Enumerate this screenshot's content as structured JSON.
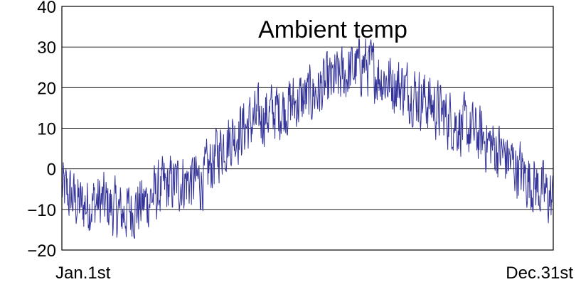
{
  "chart_data": {
    "type": "line",
    "title": "Ambient temp",
    "xlabel": "",
    "ylabel": "",
    "x_tick_labels": [
      "Jan.1st",
      "Dec.31st"
    ],
    "ylim": [
      -20,
      40
    ],
    "y_ticks": [
      -20,
      -10,
      0,
      10,
      20,
      30,
      40
    ],
    "y_tick_labels": [
      "−20",
      "−10",
      "0",
      "10",
      "20",
      "30",
      "40"
    ],
    "grid": "horizontal",
    "legend": "none",
    "x": [
      1,
      15,
      30,
      45,
      60,
      75,
      90,
      105,
      120,
      135,
      150,
      165,
      180,
      195,
      210,
      225,
      240,
      255,
      270,
      285,
      300,
      315,
      330,
      345,
      365
    ],
    "series": [
      {
        "color": "#333399",
        "values": [
          -5,
          -9,
          -8,
          -11,
          -9,
          -5,
          -3,
          -3,
          6,
          10,
          13,
          15,
          17,
          20,
          23,
          26,
          22,
          20,
          17,
          13,
          10,
          7,
          3,
          -2,
          -8
        ]
      }
    ]
  }
}
